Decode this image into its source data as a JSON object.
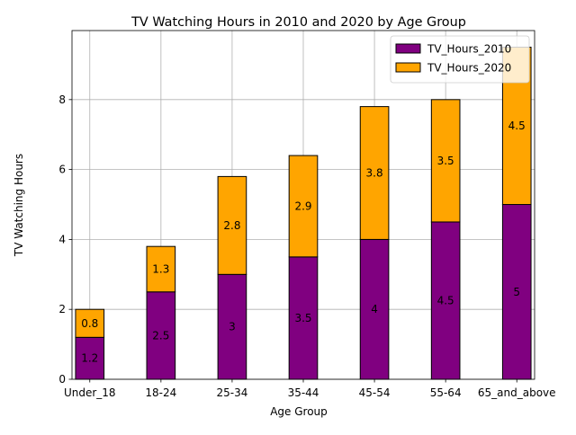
{
  "chart_data": {
    "type": "bar",
    "stacked": true,
    "title": "TV Watching Hours in 2010 and 2020 by Age Group",
    "xlabel": "Age Group",
    "ylabel": "TV Watching Hours",
    "categories": [
      "Under_18",
      "18-24",
      "25-34",
      "35-44",
      "45-54",
      "55-64",
      "65_and_above"
    ],
    "series": [
      {
        "name": "TV_Hours_2010",
        "color": "#800080",
        "values": [
          1.2,
          2.5,
          3,
          3.5,
          4,
          4.5,
          5
        ],
        "labels": [
          "1.2",
          "2.5",
          "3",
          "3.5",
          "4",
          "4.5",
          "5"
        ]
      },
      {
        "name": "TV_Hours_2020",
        "color": "#FFA500",
        "values": [
          0.8,
          1.3,
          2.8,
          2.9,
          3.8,
          3.5,
          4.5
        ],
        "labels": [
          "0.8",
          "1.3",
          "2.8",
          "2.9",
          "3.8",
          "3.5",
          "4.5"
        ]
      }
    ],
    "ylim": [
      0,
      9.975
    ],
    "yticks": [
      0,
      2,
      4,
      6,
      8
    ],
    "grid": true,
    "legend": "upper-right"
  }
}
